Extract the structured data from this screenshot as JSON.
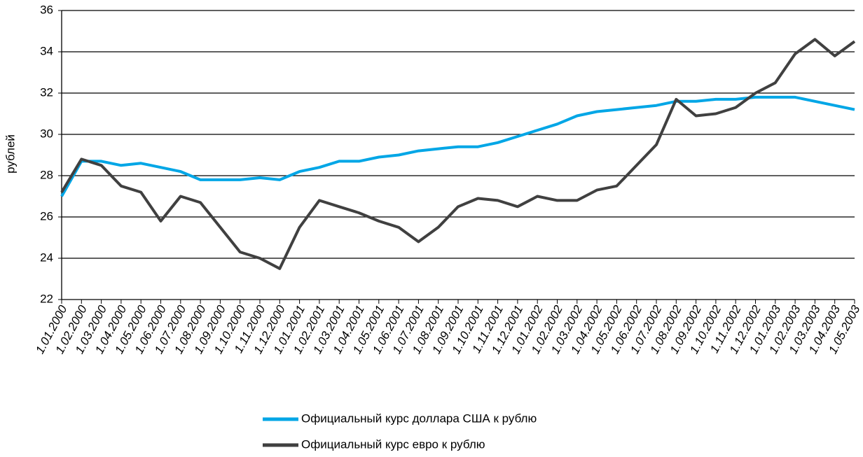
{
  "chart_data": {
    "type": "line",
    "y_label": "рублей",
    "categories": [
      "1.01.2000",
      "1.02.2000",
      "1.03.2000",
      "1.04.2000",
      "1.05.2000",
      "1.06.2000",
      "1.07.2000",
      "1.08.2000",
      "1.09.2000",
      "1.10.2000",
      "1.11.2000",
      "1.12.2000",
      "1.01.2001",
      "1.02.2001",
      "1.03.2001",
      "1.04.2001",
      "1.05.2001",
      "1.06.2001",
      "1.07.2001",
      "1.08.2001",
      "1.09.2001",
      "1.10.2001",
      "1.11.2001",
      "1.12.2001",
      "1.01.2002",
      "1.02.2002",
      "1.03.2002",
      "1.04.2002",
      "1.05.2002",
      "1.06.2002",
      "1.07.2002",
      "1.08.2002",
      "1.09.2002",
      "1.10.2002",
      "1.11.2002",
      "1.12.2002",
      "1.01.2003",
      "1.02.2003",
      "1.03.2003",
      "1.04.2003",
      "1.05.2003"
    ],
    "series": [
      {
        "name": "Официальный курс доллара США к рублю",
        "color": "#00a6e6",
        "values": [
          27.0,
          28.7,
          28.7,
          28.5,
          28.6,
          28.4,
          28.2,
          27.8,
          27.8,
          27.8,
          27.9,
          27.8,
          28.2,
          28.4,
          28.7,
          28.7,
          28.9,
          29.0,
          29.2,
          29.3,
          29.4,
          29.4,
          29.6,
          29.9,
          30.2,
          30.5,
          30.9,
          31.1,
          31.2,
          31.3,
          31.4,
          31.6,
          31.6,
          31.7,
          31.7,
          31.8,
          31.8,
          31.8,
          31.6,
          31.4,
          31.2
        ]
      },
      {
        "name": "Официальный курс евро к рублю",
        "color": "#404040",
        "values": [
          27.2,
          28.8,
          28.5,
          27.5,
          27.2,
          25.8,
          27.0,
          26.7,
          25.5,
          24.3,
          24.0,
          23.5,
          25.5,
          26.8,
          26.5,
          26.2,
          25.8,
          25.5,
          24.8,
          25.5,
          26.5,
          26.9,
          26.8,
          26.5,
          27.0,
          26.8,
          26.8,
          27.3,
          27.5,
          28.5,
          29.5,
          31.7,
          30.9,
          31.0,
          31.3,
          32.0,
          32.5,
          33.9,
          34.6,
          33.8,
          34.5
        ]
      }
    ],
    "ylim": [
      22,
      36
    ],
    "yticks": [
      22,
      24,
      26,
      28,
      30,
      32,
      34,
      36
    ],
    "grid": true
  }
}
